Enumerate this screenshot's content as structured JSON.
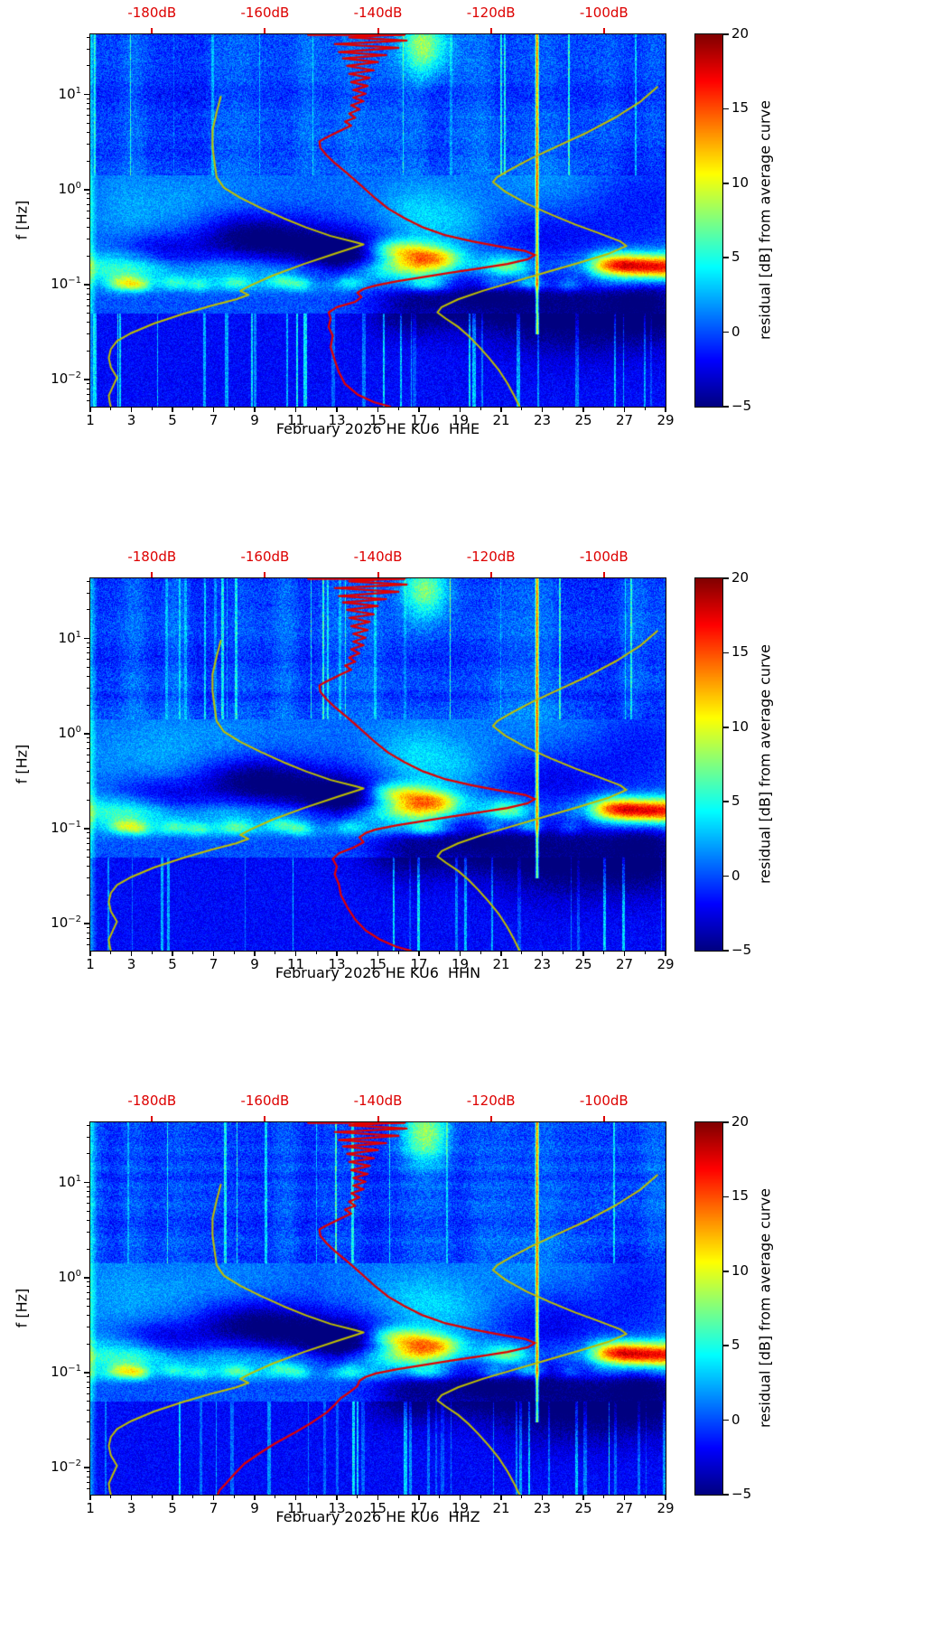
{
  "colormap": {
    "vmin": -5,
    "vmax": 20
  },
  "colorbar": {
    "label": "residual [dB] from average curve",
    "ticks": [
      20,
      15,
      10,
      5,
      0,
      -5
    ]
  },
  "axes": {
    "ylabel": "f [Hz]",
    "x_ticks": [
      1,
      3,
      5,
      7,
      9,
      11,
      13,
      15,
      17,
      19,
      21,
      23,
      25,
      27,
      29
    ],
    "x_range": [
      1,
      29
    ],
    "y_range_hz": [
      0.0052,
      43
    ],
    "y_major_tick_exponents": [
      1,
      0,
      -1,
      -2
    ],
    "top_axis": {
      "color": "#dd0000",
      "labels": [
        "-180dB",
        "-160dB",
        "-140dB",
        "-120dB",
        "-100dB"
      ],
      "positions_day": [
        4.0,
        9.5,
        15.0,
        20.5,
        26.0
      ]
    }
  },
  "styles": {
    "red_curve_color": "#e10000",
    "noise_model_color": "#bfbf00",
    "background": "#ffffff"
  },
  "chart_data": [
    {
      "type": "heatmap",
      "xlabel": "February 2026 HE KU6  HHE",
      "ylabel": "f [Hz]",
      "colorbar_label": "residual [dB] from average curve",
      "value_range_db": [
        -5,
        20
      ],
      "x_days": [
        1,
        29
      ],
      "f_range_hz": [
        0.0052,
        43
      ],
      "top_db_axis": [
        "-180dB",
        "-160dB",
        "-140dB",
        "-120dB",
        "-100dB"
      ],
      "seed": 11,
      "red_curve_lower": [
        [
          14.3,
          0.09
        ],
        [
          14.0,
          0.082
        ],
        [
          14.2,
          0.074
        ],
        [
          13.9,
          0.066
        ],
        [
          13.0,
          0.058
        ],
        [
          12.6,
          0.051
        ],
        [
          12.7,
          0.044
        ],
        [
          12.6,
          0.036
        ],
        [
          12.8,
          0.029
        ],
        [
          12.7,
          0.022
        ],
        [
          12.9,
          0.016
        ],
        [
          13.1,
          0.012
        ],
        [
          13.4,
          0.009
        ],
        [
          14.0,
          0.007
        ],
        [
          14.8,
          0.0058
        ],
        [
          15.6,
          0.0052
        ]
      ]
    },
    {
      "type": "heatmap",
      "xlabel": "February 2026 HE KU6  HHN",
      "ylabel": "f [Hz]",
      "colorbar_label": "residual [dB] from average curve",
      "value_range_db": [
        -5,
        20
      ],
      "x_days": [
        1,
        29
      ],
      "f_range_hz": [
        0.0052,
        43
      ],
      "top_db_axis": [
        "-180dB",
        "-160dB",
        "-140dB",
        "-120dB",
        "-100dB"
      ],
      "seed": 23,
      "red_curve_lower": [
        [
          14.4,
          0.09
        ],
        [
          14.1,
          0.081
        ],
        [
          14.3,
          0.072
        ],
        [
          13.8,
          0.063
        ],
        [
          13.1,
          0.055
        ],
        [
          12.8,
          0.048
        ],
        [
          13.0,
          0.04
        ],
        [
          12.9,
          0.033
        ],
        [
          13.1,
          0.026
        ],
        [
          13.2,
          0.02
        ],
        [
          13.5,
          0.015
        ],
        [
          13.9,
          0.011
        ],
        [
          14.4,
          0.0085
        ],
        [
          15.1,
          0.0068
        ],
        [
          15.9,
          0.0057
        ],
        [
          16.6,
          0.0052
        ]
      ]
    },
    {
      "type": "heatmap",
      "xlabel": "February 2026 HE KU6  HHZ",
      "ylabel": "f [Hz]",
      "colorbar_label": "residual [dB] from average curve",
      "value_range_db": [
        -5,
        20
      ],
      "x_days": [
        1,
        29
      ],
      "f_range_hz": [
        0.0052,
        43
      ],
      "top_db_axis": [
        "-180dB",
        "-160dB",
        "-140dB",
        "-120dB",
        "-100dB"
      ],
      "seed": 37,
      "red_curve_lower": [
        [
          14.4,
          0.09
        ],
        [
          14.1,
          0.082
        ],
        [
          14.0,
          0.072
        ],
        [
          13.6,
          0.062
        ],
        [
          13.2,
          0.054
        ],
        [
          12.9,
          0.046
        ],
        [
          12.5,
          0.038
        ],
        [
          11.8,
          0.03
        ],
        [
          10.9,
          0.023
        ],
        [
          10.0,
          0.018
        ],
        [
          9.2,
          0.014
        ],
        [
          8.5,
          0.011
        ],
        [
          8.0,
          0.0085
        ],
        [
          7.6,
          0.0068
        ],
        [
          7.3,
          0.0058
        ],
        [
          7.2,
          0.0052
        ]
      ]
    }
  ],
  "shared_curves": {
    "red_upper": [
      [
        11.6,
        42.5
      ],
      [
        16.3,
        42.5
      ],
      [
        15.2,
        42.0
      ],
      [
        13.6,
        40
      ],
      [
        16.4,
        37
      ],
      [
        12.9,
        34
      ],
      [
        16.0,
        31
      ],
      [
        13.1,
        28
      ],
      [
        15.4,
        26
      ],
      [
        13.3,
        24
      ],
      [
        15.0,
        22
      ],
      [
        13.5,
        20
      ],
      [
        14.8,
        18
      ],
      [
        13.6,
        16.5
      ],
      [
        14.6,
        15
      ],
      [
        13.7,
        13.5
      ],
      [
        14.5,
        12.3
      ],
      [
        13.8,
        11.2
      ],
      [
        14.4,
        10.2
      ],
      [
        13.8,
        9.3
      ],
      [
        14.3,
        8.5
      ],
      [
        13.7,
        7.7
      ],
      [
        14.1,
        7.0
      ],
      [
        13.6,
        6.3
      ],
      [
        13.9,
        5.7
      ],
      [
        13.4,
        5.2
      ],
      [
        13.7,
        4.7
      ],
      [
        13.2,
        4.2
      ],
      [
        12.8,
        3.8
      ],
      [
        12.4,
        3.45
      ],
      [
        12.15,
        3.2
      ],
      [
        12.2,
        2.75
      ],
      [
        12.5,
        2.3
      ],
      [
        12.9,
        1.9
      ],
      [
        13.4,
        1.55
      ],
      [
        13.9,
        1.25
      ],
      [
        14.4,
        1.0
      ],
      [
        14.9,
        0.8
      ],
      [
        15.5,
        0.63
      ],
      [
        16.3,
        0.5
      ],
      [
        17.2,
        0.4
      ],
      [
        18.3,
        0.33
      ],
      [
        19.6,
        0.285
      ],
      [
        21.0,
        0.25
      ],
      [
        22.2,
        0.225
      ],
      [
        22.65,
        0.205
      ],
      [
        22.3,
        0.185
      ],
      [
        21.3,
        0.165
      ],
      [
        19.9,
        0.148
      ],
      [
        18.5,
        0.133
      ],
      [
        17.2,
        0.12
      ],
      [
        15.9,
        0.108
      ],
      [
        14.9,
        0.098
      ]
    ],
    "nlnm": [
      [
        7.35,
        9.5
      ],
      [
        7.15,
        6.5
      ],
      [
        6.95,
        4.2
      ],
      [
        6.95,
        2.8
      ],
      [
        7.05,
        1.9
      ],
      [
        7.15,
        1.35
      ],
      [
        7.5,
        1.05
      ],
      [
        8.3,
        0.82
      ],
      [
        9.3,
        0.64
      ],
      [
        10.4,
        0.5
      ],
      [
        11.5,
        0.4
      ],
      [
        12.7,
        0.325
      ],
      [
        13.9,
        0.28
      ],
      [
        14.3,
        0.265
      ],
      [
        13.0,
        0.215
      ],
      [
        11.4,
        0.165
      ],
      [
        9.9,
        0.125
      ],
      [
        8.8,
        0.098
      ],
      [
        8.3,
        0.086
      ],
      [
        8.7,
        0.078
      ],
      [
        8.1,
        0.07
      ],
      [
        6.9,
        0.06
      ],
      [
        5.5,
        0.049
      ],
      [
        4.1,
        0.039
      ],
      [
        3.0,
        0.031
      ],
      [
        2.3,
        0.0255
      ],
      [
        2.0,
        0.021
      ],
      [
        1.9,
        0.017
      ],
      [
        2.0,
        0.0135
      ],
      [
        2.3,
        0.0105
      ],
      [
        2.1,
        0.0085
      ],
      [
        1.9,
        0.0068
      ],
      [
        1.95,
        0.0057
      ],
      [
        2.0,
        0.0052
      ]
    ],
    "nhnm": [
      [
        28.6,
        12
      ],
      [
        27.8,
        8.5
      ],
      [
        26.6,
        5.8
      ],
      [
        25.2,
        4.0
      ],
      [
        23.8,
        2.9
      ],
      [
        22.5,
        2.15
      ],
      [
        21.5,
        1.65
      ],
      [
        20.8,
        1.35
      ],
      [
        20.6,
        1.2
      ],
      [
        21.2,
        0.95
      ],
      [
        22.2,
        0.72
      ],
      [
        23.4,
        0.55
      ],
      [
        24.6,
        0.43
      ],
      [
        25.8,
        0.345
      ],
      [
        26.8,
        0.285
      ],
      [
        27.1,
        0.255
      ],
      [
        26.2,
        0.21
      ],
      [
        24.8,
        0.17
      ],
      [
        23.2,
        0.135
      ],
      [
        21.6,
        0.107
      ],
      [
        20.1,
        0.086
      ],
      [
        18.9,
        0.07
      ],
      [
        18.1,
        0.058
      ],
      [
        17.9,
        0.051
      ],
      [
        18.3,
        0.044
      ],
      [
        18.9,
        0.036
      ],
      [
        19.4,
        0.029
      ],
      [
        19.9,
        0.0225
      ],
      [
        20.4,
        0.017
      ],
      [
        20.9,
        0.0125
      ],
      [
        21.3,
        0.0092
      ],
      [
        21.6,
        0.007
      ],
      [
        21.8,
        0.0057
      ],
      [
        21.9,
        0.0052
      ]
    ]
  },
  "texture": {
    "band": {
      "center_hz": 0.15,
      "sigma_log": 0.115,
      "days": [
        1,
        3,
        5,
        7,
        9,
        11,
        13,
        15,
        16,
        17,
        18,
        19,
        21,
        23,
        25,
        26,
        27,
        29
      ],
      "amps": [
        5,
        6.5,
        5,
        5.5,
        4.5,
        4,
        2.5,
        7,
        9,
        10,
        8,
        5,
        6.5,
        3,
        4,
        9,
        11,
        11
      ]
    },
    "secondary_band": {
      "center_hz": 0.095,
      "sigma_log": 0.05,
      "amp": 2.5
    },
    "bright_blobs": [
      [
        16.8,
        0.21,
        1.0,
        0.1,
        8
      ],
      [
        15.5,
        0.245,
        0.8,
        0.07,
        5
      ],
      [
        18.1,
        0.19,
        0.8,
        0.07,
        5
      ],
      [
        28.2,
        0.155,
        1.5,
        0.08,
        9
      ],
      [
        26.5,
        0.17,
        0.8,
        0.07,
        5
      ],
      [
        21.4,
        0.155,
        0.7,
        0.07,
        5
      ],
      [
        2.6,
        0.105,
        0.5,
        0.055,
        6
      ],
      [
        3.4,
        0.1,
        0.4,
        0.05,
        5
      ],
      [
        5.1,
        0.105,
        0.5,
        0.05,
        4
      ],
      [
        6.3,
        0.1,
        0.4,
        0.05,
        3.5
      ],
      [
        8.1,
        0.105,
        0.6,
        0.05,
        4
      ],
      [
        10.3,
        0.11,
        0.5,
        0.05,
        4.5
      ],
      [
        11.2,
        0.1,
        0.4,
        0.05,
        4
      ],
      [
        13.6,
        0.105,
        0.5,
        0.05,
        3
      ],
      [
        17.4,
        0.1,
        0.6,
        0.05,
        4
      ],
      [
        20.6,
        0.1,
        0.5,
        0.05,
        4
      ],
      [
        22.4,
        0.105,
        0.5,
        0.05,
        5
      ],
      [
        24.3,
        0.1,
        0.4,
        0.05,
        3
      ],
      [
        17.3,
        33,
        0.8,
        0.22,
        8
      ],
      [
        16.8,
        0.55,
        1.3,
        0.22,
        2.5
      ],
      [
        19.2,
        0.42,
        1.4,
        0.2,
        2
      ],
      [
        4.5,
        0.6,
        3.0,
        0.28,
        1.5
      ],
      [
        23.5,
        1.1,
        2.5,
        0.3,
        1.2
      ]
    ],
    "dark_blobs": [
      [
        11.0,
        0.24,
        3.0,
        0.2,
        -6
      ],
      [
        8.5,
        0.36,
        1.8,
        0.16,
        -3.5
      ],
      [
        13.6,
        0.2,
        1.4,
        0.13,
        -5
      ],
      [
        20.0,
        0.085,
        1.8,
        0.22,
        -5
      ],
      [
        24.5,
        0.06,
        2.8,
        0.33,
        -5
      ],
      [
        28.2,
        0.07,
        1.4,
        0.28,
        -4
      ],
      [
        16.5,
        0.062,
        1.4,
        0.22,
        -4
      ],
      [
        5.9,
        0.17,
        1.4,
        0.13,
        -3
      ],
      [
        3.9,
        0.23,
        1.4,
        0.13,
        -3
      ],
      [
        23.0,
        0.35,
        2.5,
        0.25,
        -2.5
      ],
      [
        27.5,
        0.8,
        2.0,
        0.3,
        -2
      ]
    ],
    "red_line": {
      "day": 22.75,
      "width": 0.12,
      "fmin": 0.03,
      "fmax": 43,
      "amp": 15
    },
    "left_edge_stripe": {
      "day_max": 1.35,
      "amp": 4
    }
  }
}
